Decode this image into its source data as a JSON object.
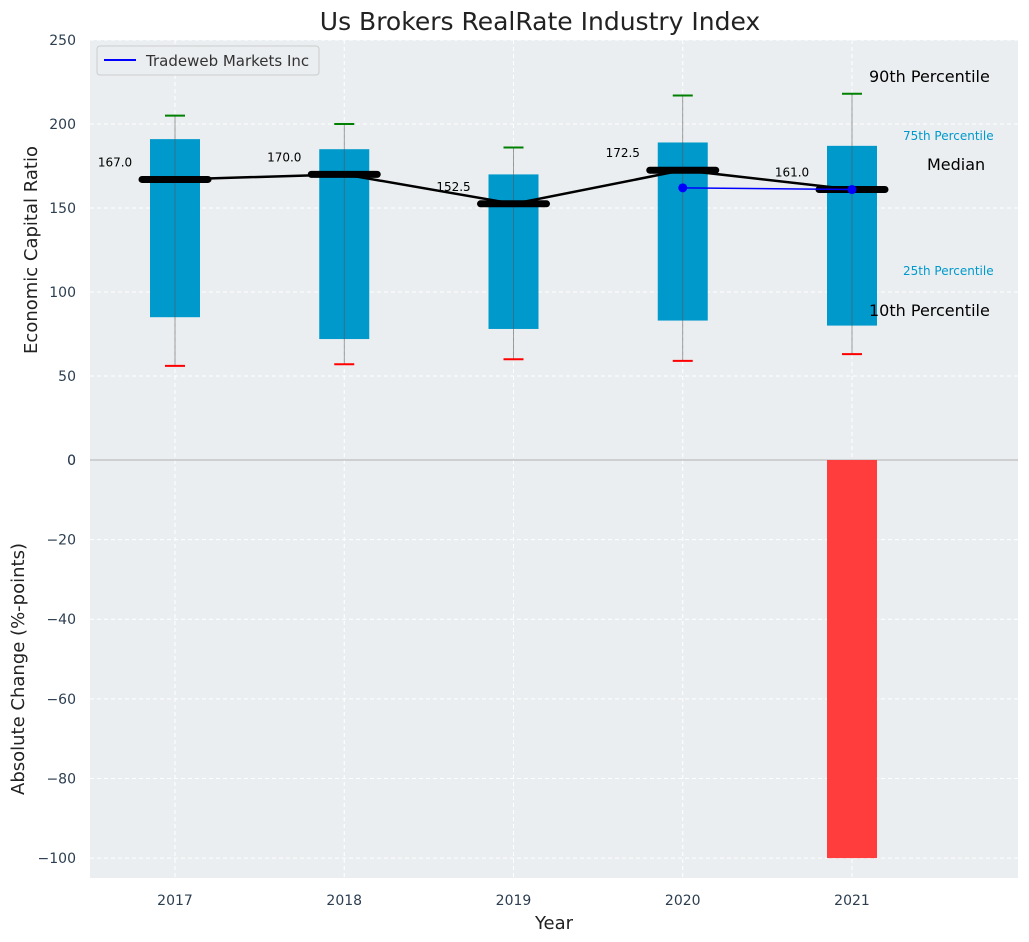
{
  "chart_data": {
    "title": "Us Brokers RealRate Industry Index",
    "xlabel": "Year",
    "categories": [
      "2017",
      "2018",
      "2019",
      "2020",
      "2021"
    ],
    "grid": true,
    "top_panel": {
      "type": "box",
      "ylabel": "Economic Capital Ratio",
      "ylim": [
        0,
        250
      ],
      "yticks": [
        "0",
        "50",
        "100",
        "150",
        "200",
        "250"
      ],
      "box_color": "#0099cc",
      "boxes": [
        {
          "year": "2017",
          "p10": 56,
          "p25": 85,
          "median": 167.0,
          "p75": 191,
          "p90": 205
        },
        {
          "year": "2018",
          "p10": 57,
          "p25": 72,
          "median": 170.0,
          "p75": 185,
          "p90": 200
        },
        {
          "year": "2019",
          "p10": 60,
          "p25": 78,
          "median": 152.5,
          "p75": 170,
          "p90": 186
        },
        {
          "year": "2020",
          "p10": 59,
          "p25": 83,
          "median": 172.5,
          "p75": 189,
          "p90": 217
        },
        {
          "year": "2021",
          "p10": 63,
          "p25": 80,
          "median": 161.0,
          "p75": 187,
          "p90": 218
        }
      ],
      "median_labels": [
        "167.0",
        "170.0",
        "152.5",
        "172.5",
        "161.0"
      ],
      "company_series": {
        "name": "Tradeweb Markets Inc",
        "color": "#0000ff",
        "points": [
          {
            "year": "2020",
            "value": 162
          },
          {
            "year": "2021",
            "value": 161
          }
        ]
      },
      "legend": {
        "position": "top-left",
        "label": "Tradeweb Markets Inc"
      },
      "annotations": {
        "p90": "90th Percentile",
        "p75": "75th Percentile",
        "median": "Median",
        "p25": "25th Percentile",
        "p10": "10th Percentile"
      }
    },
    "bottom_panel": {
      "type": "bar",
      "ylabel": "Absolute Change (%-points)",
      "ylim": [
        -105,
        0
      ],
      "yticks": [
        "0",
        "−20",
        "−40",
        "−60",
        "−80",
        "−100"
      ],
      "bars": [
        {
          "year": "2021",
          "value": -100
        }
      ],
      "bar_color": "#ff3d3d"
    },
    "colors": {
      "background": "#eaeef0",
      "p90_whisker": "#008000",
      "p10_whisker": "#ff0000",
      "median_line": "#000000",
      "annotation_blue": "#0099cc"
    }
  }
}
